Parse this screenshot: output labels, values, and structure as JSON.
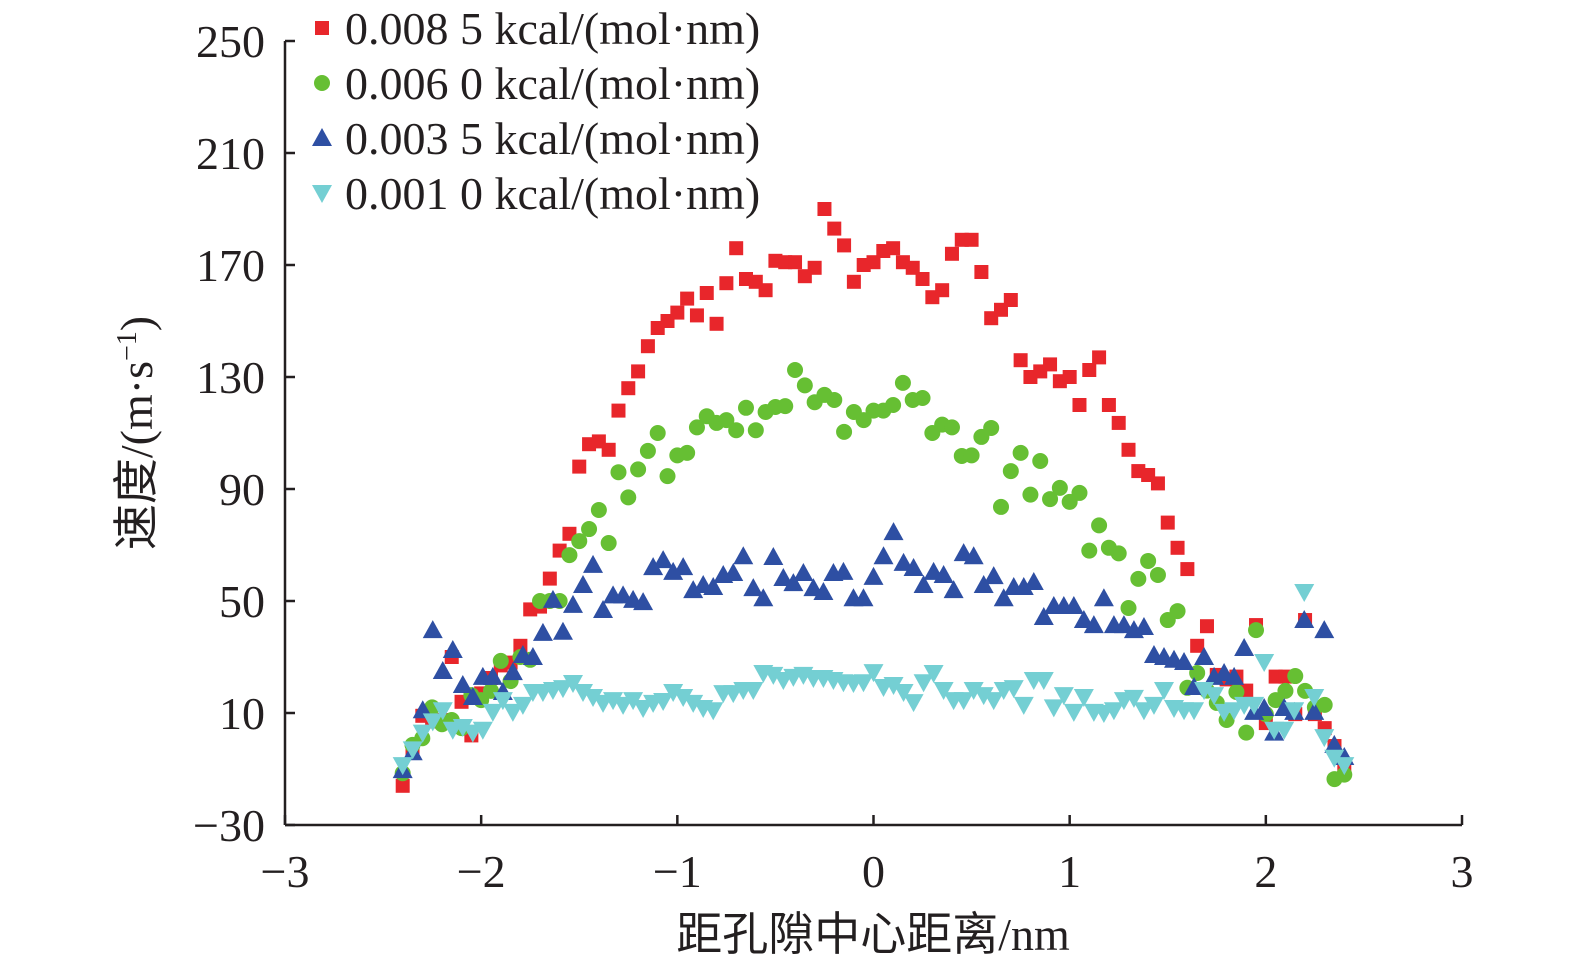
{
  "chart_data": {
    "type": "scatter",
    "title": "",
    "xlabel": "距孔隙中心距离/nm",
    "ylabel": "速度/(m·s",
    "ylabel_superscript": "−1",
    "ylabel_close": ")",
    "xlim": [
      -3,
      3
    ],
    "ylim": [
      -30,
      250
    ],
    "xticks": [
      -3,
      -2,
      -1,
      0,
      1,
      2,
      3
    ],
    "xtick_labels": [
      "−3",
      "−2",
      "−1",
      "0",
      "1",
      "2",
      "3"
    ],
    "yticks": [
      -30,
      10,
      50,
      90,
      130,
      170,
      210,
      250
    ],
    "ytick_labels": [
      "−30",
      "10",
      "50",
      "90",
      "130",
      "170",
      "210",
      "250"
    ],
    "grid": false,
    "legend_position": "top-left",
    "x_range_of_points": [
      -2.4,
      2.4
    ],
    "series": [
      {
        "name": "0.008 5 kcal/(mol·nm)",
        "marker": "square",
        "color": "#e8262b",
        "values": [
          -16,
          -3,
          9,
          7,
          7.5,
          30,
          14,
          2,
          17,
          22.5,
          27,
          28,
          34,
          47,
          48,
          58,
          68,
          74,
          98,
          106,
          107,
          104,
          118,
          126,
          132,
          141,
          147.5,
          150,
          153,
          158,
          152,
          160,
          149,
          163.5,
          176,
          165,
          164,
          161,
          171.5,
          171,
          171,
          166,
          169,
          190,
          183,
          177,
          164,
          170,
          171,
          175,
          176,
          171,
          169,
          165,
          158.5,
          161,
          174,
          179,
          179,
          167.5,
          151,
          154,
          157.5,
          136,
          130,
          132,
          134.5,
          128.5,
          130,
          120,
          132.5,
          137,
          120,
          113.6,
          104,
          96.4,
          95,
          92,
          78,
          69,
          61.4,
          34,
          41,
          23.6,
          22,
          23,
          18,
          41.4,
          6.4,
          23,
          23,
          9.6,
          43.2,
          9.6,
          4.6,
          -1.8,
          -8.6
        ]
      },
      {
        "name": "0.006 0 kcal/(mol·nm)",
        "marker": "circle",
        "color": "#66bf33",
        "values": [
          -11.5,
          -1.4,
          1,
          12,
          6,
          7.5,
          4.6,
          16.4,
          14.6,
          17.9,
          28.6,
          21.4,
          30,
          29,
          50,
          50,
          50,
          66.4,
          71.4,
          75.7,
          82.5,
          70.7,
          96,
          87,
          97,
          103.6,
          110,
          94.6,
          102,
          102.9,
          112,
          116,
          113.6,
          114.6,
          111,
          119,
          111,
          117.5,
          119.3,
          119.6,
          132.5,
          127,
          121,
          123.6,
          121.8,
          110.4,
          117.5,
          114.6,
          118,
          118,
          120,
          127.9,
          121.8,
          122.5,
          110,
          113,
          112,
          101.8,
          102,
          108.6,
          111.8,
          83.6,
          96.4,
          102.9,
          88,
          100,
          86.4,
          90.4,
          85.4,
          88.6,
          68,
          77,
          69,
          67,
          47.5,
          57.9,
          64.3,
          59.3,
          43.2,
          46.4,
          19,
          24.3,
          18,
          13.6,
          7.5,
          17.5,
          3,
          39.6,
          9.6,
          14.6,
          17.9,
          23.2,
          17.9,
          12,
          12.9,
          -13.6,
          -12
        ]
      },
      {
        "name": "0.003 5 kcal/(mol·nm)",
        "marker": "triangle-up",
        "color": "#2e4fa3",
        "values": [
          -10.4,
          -4,
          11,
          39.6,
          25,
          32.5,
          20,
          15.7,
          22.9,
          22.9,
          17.5,
          24.6,
          30.7,
          30,
          38.6,
          50.4,
          39,
          48.6,
          55.7,
          62.9,
          46.8,
          52,
          52,
          50.4,
          49.6,
          62.1,
          64.6,
          60.4,
          62.1,
          53.9,
          55.7,
          55,
          59.3,
          60,
          66,
          54.6,
          51,
          65.7,
          58.2,
          56.4,
          60,
          54.6,
          53.2,
          60,
          60.4,
          51,
          51,
          58.6,
          66,
          74.6,
          63.6,
          61.8,
          55.7,
          60.4,
          59.3,
          53.9,
          67.1,
          66,
          55.7,
          58.9,
          51,
          55,
          55,
          56.8,
          44.3,
          48.2,
          48.2,
          48.2,
          43.2,
          41.4,
          51,
          41.4,
          41.4,
          39.6,
          40.7,
          30.7,
          30,
          29,
          28.2,
          19.3,
          30,
          22.9,
          24.3,
          22.9,
          33.2,
          10.4,
          11.8,
          3,
          11.8,
          10.4,
          43.2,
          10.4,
          39.6,
          -1.4,
          -5.7
        ]
      },
      {
        "name": "0.001 0 kcal/(mol·nm)",
        "marker": "triangle-down",
        "color": "#74cfd3",
        "values": [
          -8.6,
          -3,
          3,
          7,
          11,
          4,
          5,
          3,
          4,
          10.4,
          14.6,
          10.4,
          12.9,
          17.5,
          17.5,
          18.2,
          18.9,
          20.7,
          17.5,
          15.7,
          13.6,
          14.6,
          12.9,
          14.6,
          11.8,
          13.6,
          14.3,
          17.5,
          15.7,
          13.6,
          11.8,
          11,
          17.1,
          17.1,
          18.2,
          18.2,
          24.3,
          23.6,
          21.8,
          22.9,
          23.6,
          22.5,
          22.5,
          21.8,
          21,
          20.7,
          21,
          24.6,
          19.3,
          20,
          17.5,
          13.9,
          21,
          24.3,
          18.2,
          14.6,
          14.6,
          18.2,
          16.4,
          14.6,
          18.2,
          18.9,
          12.9,
          21.8,
          21.8,
          12,
          16.4,
          10.4,
          15.7,
          10.4,
          10,
          11,
          14.6,
          15.4,
          11,
          12.9,
          18.2,
          11.8,
          11,
          11,
          18.2,
          16.4,
          10.4,
          11,
          12.9,
          12.9,
          28.2,
          4,
          4,
          11,
          53.2,
          15.7,
          1.4,
          -6,
          -8.6
        ]
      }
    ]
  }
}
